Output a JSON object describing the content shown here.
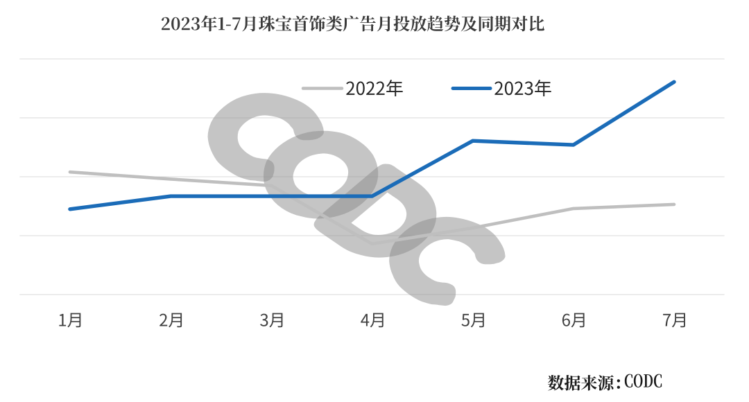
{
  "title": "2023年1-7月珠宝首饰类广告月投放趋势及同期对比",
  "legend": {
    "items": [
      {
        "label": "2022年",
        "color": "#BFBFBF"
      },
      {
        "label": "2023年",
        "color": "#1B6CB8"
      }
    ]
  },
  "source_note": "数据来源：CODC",
  "watermark_text": "CODC",
  "colors": {
    "series_2022": "#BFBFBF",
    "series_2023": "#1B6CB8",
    "gridline": "#D9D9D9",
    "title_text": "#3A3A3A",
    "axis_label_text": "#404040",
    "watermark": "#8C8C8C"
  },
  "chart_data": {
    "type": "line",
    "title": "2023年1-7月珠宝首饰类广告月投放趋势及同期对比",
    "categories": [
      "1月",
      "2月",
      "3月",
      "4月",
      "5月",
      "6月",
      "7月"
    ],
    "series": [
      {
        "name": "2022年",
        "color": "#BFBFBF",
        "values": [
          208,
          196,
          185,
          86,
          113,
          146,
          153
        ]
      },
      {
        "name": "2023年",
        "color": "#1B6CB8",
        "values": [
          145,
          167,
          167,
          167,
          261,
          254,
          361
        ]
      }
    ],
    "xlabel": "",
    "ylabel": "",
    "ylim": [
      0,
      400
    ],
    "ygrid_step": 100,
    "grid": true,
    "y_axis_visible": false,
    "legend_position": "top-center"
  }
}
